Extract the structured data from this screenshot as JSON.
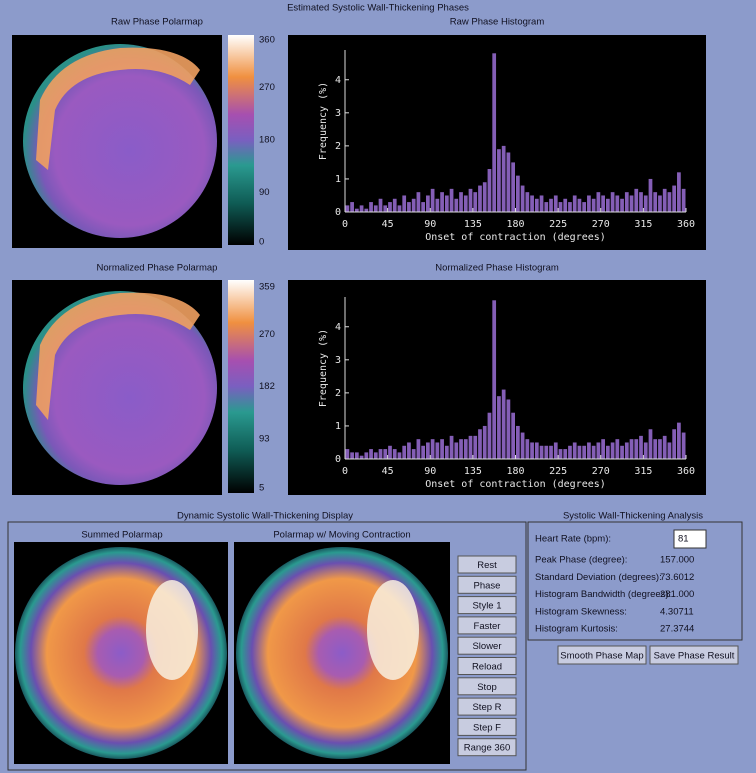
{
  "window_title": "Estimated Systolic Wall-Thickening Phases",
  "raw_polarmap": {
    "title": "Raw Phase Polarmap",
    "colorbar_ticks": [
      360,
      270,
      180,
      90,
      0
    ]
  },
  "normalized_polarmap": {
    "title": "Normalized Phase Polarmap",
    "colorbar_ticks": [
      359,
      270,
      182,
      93,
      5
    ]
  },
  "chart_data": [
    {
      "type": "histogram",
      "title": "Raw Phase Histogram",
      "x_label": "Onset of contraction (degrees)",
      "y_label": "Frequency (%)",
      "bins": [
        0,
        5,
        10,
        15,
        20,
        25,
        30,
        35,
        40,
        45,
        50,
        55,
        60,
        65,
        70,
        75,
        80,
        85,
        90,
        95,
        100,
        105,
        110,
        115,
        120,
        125,
        130,
        135,
        140,
        145,
        150,
        155,
        160,
        165,
        170,
        175,
        180,
        185,
        190,
        195,
        200,
        205,
        210,
        215,
        220,
        225,
        230,
        235,
        240,
        245,
        250,
        255,
        260,
        265,
        270,
        275,
        280,
        285,
        290,
        295,
        300,
        305,
        310,
        315,
        320,
        325,
        330,
        335,
        340,
        345,
        350,
        355,
        360
      ],
      "values": [
        0.2,
        0.3,
        0.1,
        0.2,
        0.1,
        0.3,
        0.2,
        0.4,
        0.2,
        0.3,
        0.4,
        0.2,
        0.5,
        0.3,
        0.4,
        0.6,
        0.3,
        0.5,
        0.7,
        0.4,
        0.6,
        0.5,
        0.7,
        0.4,
        0.6,
        0.5,
        0.7,
        0.6,
        0.8,
        0.9,
        1.3,
        4.8,
        1.9,
        2.0,
        1.8,
        1.5,
        1.1,
        0.8,
        0.6,
        0.5,
        0.4,
        0.5,
        0.3,
        0.4,
        0.5,
        0.3,
        0.4,
        0.3,
        0.5,
        0.4,
        0.3,
        0.5,
        0.4,
        0.6,
        0.5,
        0.4,
        0.6,
        0.5,
        0.4,
        0.6,
        0.5,
        0.7,
        0.6,
        0.5,
        1.0,
        0.6,
        0.5,
        0.7,
        0.6,
        0.8,
        1.2,
        0.7
      ],
      "color": "#9b6fd6",
      "xlim": [
        0,
        360
      ],
      "ylim": [
        0,
        4.9
      ],
      "xticks": [
        0,
        45,
        90,
        135,
        180,
        225,
        270,
        315,
        360
      ],
      "yticks": [
        0,
        1,
        2,
        3,
        4
      ]
    },
    {
      "type": "histogram",
      "title": "Normalized Phase Histogram",
      "x_label": "Onset of contraction (degrees)",
      "y_label": "Frequency (%)",
      "bins": [
        0,
        5,
        10,
        15,
        20,
        25,
        30,
        35,
        40,
        45,
        50,
        55,
        60,
        65,
        70,
        75,
        80,
        85,
        90,
        95,
        100,
        105,
        110,
        115,
        120,
        125,
        130,
        135,
        140,
        145,
        150,
        155,
        160,
        165,
        170,
        175,
        180,
        185,
        190,
        195,
        200,
        205,
        210,
        215,
        220,
        225,
        230,
        235,
        240,
        245,
        250,
        255,
        260,
        265,
        270,
        275,
        280,
        285,
        290,
        295,
        300,
        305,
        310,
        315,
        320,
        325,
        330,
        335,
        340,
        345,
        350,
        355,
        360
      ],
      "values": [
        0.3,
        0.2,
        0.2,
        0.1,
        0.2,
        0.3,
        0.2,
        0.3,
        0.3,
        0.4,
        0.3,
        0.2,
        0.4,
        0.5,
        0.3,
        0.6,
        0.4,
        0.5,
        0.6,
        0.5,
        0.6,
        0.4,
        0.7,
        0.5,
        0.6,
        0.6,
        0.7,
        0.7,
        0.9,
        1.0,
        1.4,
        4.8,
        1.9,
        2.1,
        1.8,
        1.4,
        1.0,
        0.8,
        0.6,
        0.5,
        0.5,
        0.4,
        0.4,
        0.4,
        0.5,
        0.3,
        0.3,
        0.4,
        0.5,
        0.4,
        0.4,
        0.5,
        0.4,
        0.5,
        0.6,
        0.4,
        0.5,
        0.6,
        0.4,
        0.5,
        0.6,
        0.6,
        0.7,
        0.5,
        0.9,
        0.6,
        0.6,
        0.7,
        0.5,
        0.9,
        1.1,
        0.8
      ],
      "color": "#9b6fd6",
      "xlim": [
        0,
        360
      ],
      "ylim": [
        0,
        4.9
      ],
      "xticks": [
        0,
        45,
        90,
        135,
        180,
        225,
        270,
        315,
        360
      ],
      "yticks": [
        0,
        1,
        2,
        3,
        4
      ]
    }
  ],
  "dynamic_display": {
    "title": "Dynamic Systolic Wall-Thickening Display",
    "summed_title": "Summed Polarmap",
    "moving_title": "Polarmap w/ Moving Contraction",
    "buttons": [
      "Rest",
      "Phase",
      "Style 1",
      "Faster",
      "Slower",
      "Reload",
      "Stop",
      "Step R",
      "Step F",
      "Range 360"
    ]
  },
  "analysis": {
    "title": "Systolic Wall-Thickening Analysis",
    "heart_rate_label": "Heart Rate (bpm):",
    "heart_rate": 81,
    "rows": [
      [
        "Peak Phase (degree):",
        "157.000"
      ],
      [
        "Standard Deviation (degrees):",
        "73.6012"
      ],
      [
        "Histogram Bandwidth (degrees):",
        "281.000"
      ],
      [
        "Histogram Skewness:",
        "4.30711"
      ],
      [
        "Histogram Kurtosis:",
        "27.3744"
      ]
    ],
    "buttons": [
      "Smooth Phase Map",
      "Save Phase Result"
    ]
  }
}
